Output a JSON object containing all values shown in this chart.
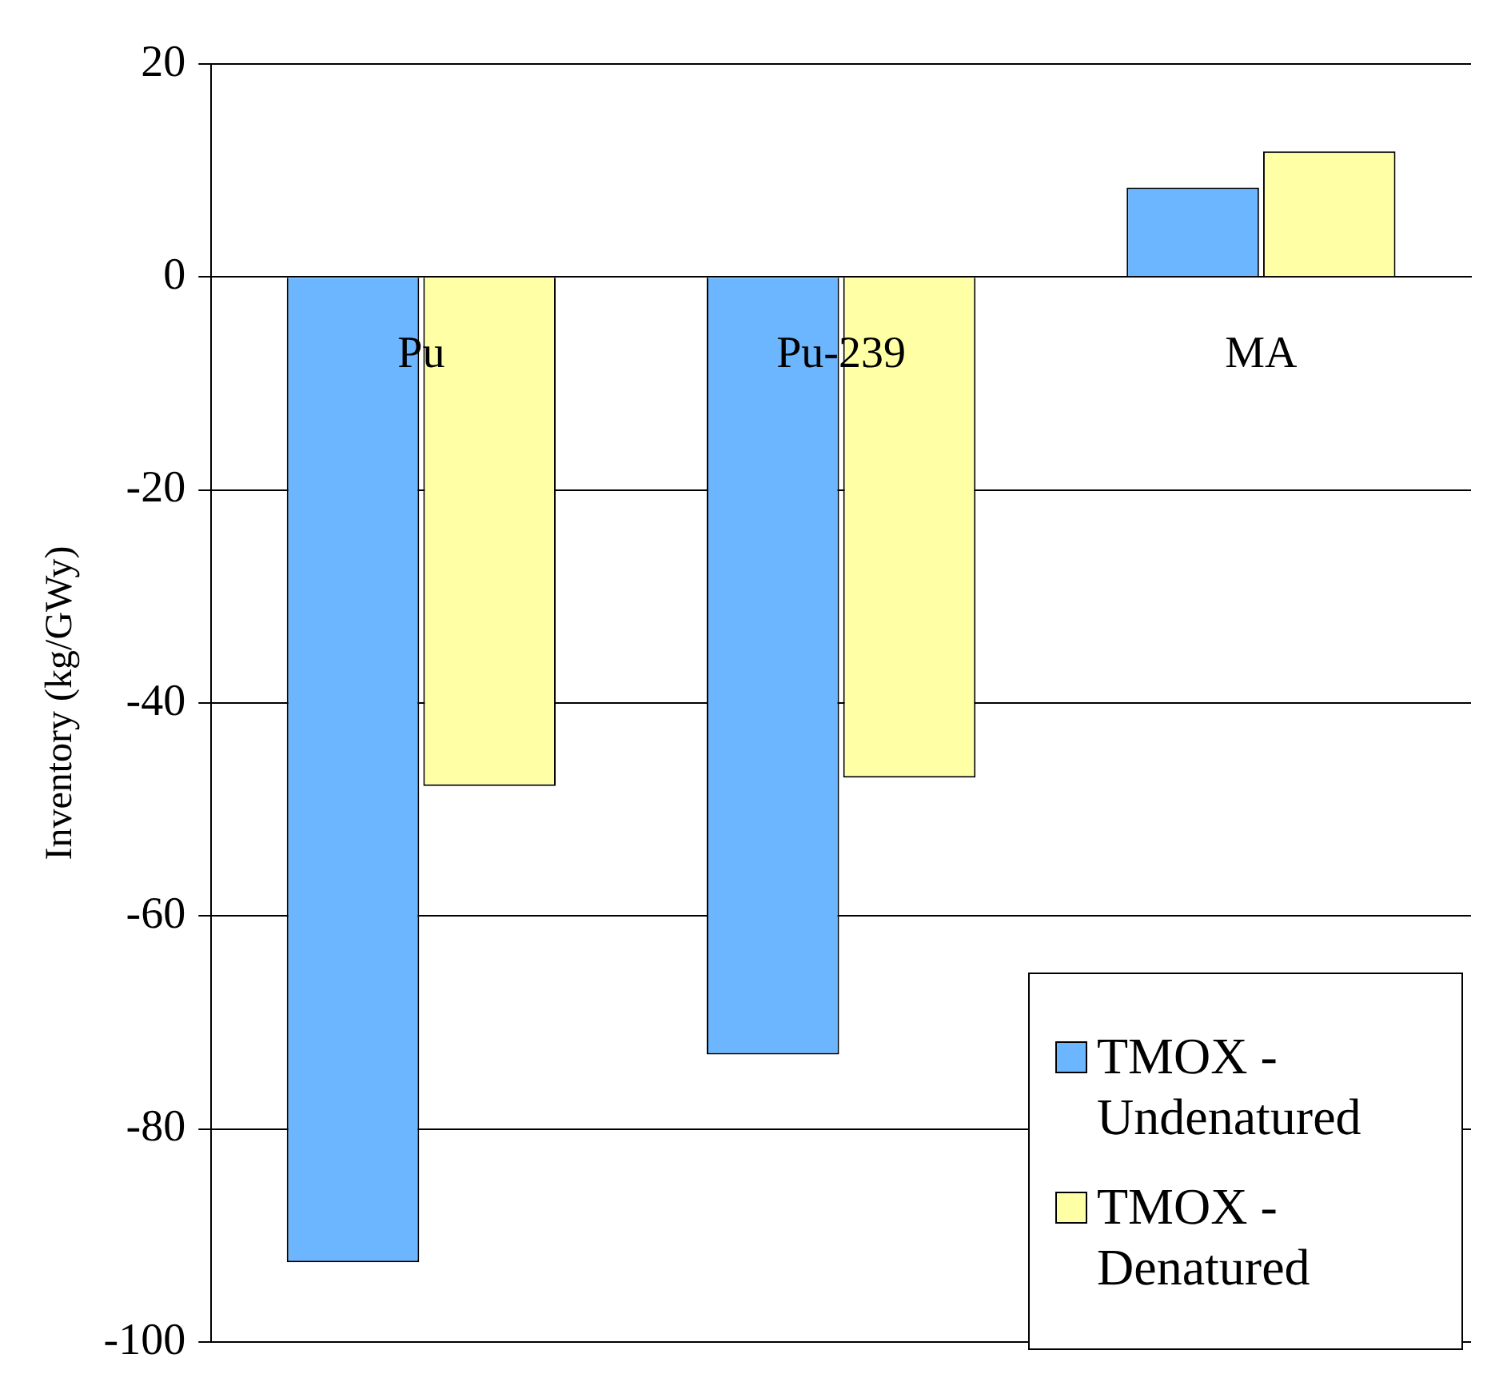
{
  "chart_data": {
    "type": "bar",
    "ylabel": "Inventory (kg/GWy)",
    "categories": [
      "Pu",
      "Pu-239",
      "MA"
    ],
    "series": [
      {
        "name": "TMOX - Undenatured",
        "color": "#6cb6ff",
        "values": [
          -92.5,
          -73,
          8.4
        ]
      },
      {
        "name": "TMOX - Denatured",
        "color": "#ffffa6",
        "values": [
          -47.8,
          -47,
          11.8
        ]
      }
    ],
    "ylim": [
      -100,
      20
    ],
    "yticks": [
      -100,
      -80,
      -60,
      -40,
      -20,
      0,
      20
    ],
    "grid": "y",
    "legend": "bottom right"
  }
}
